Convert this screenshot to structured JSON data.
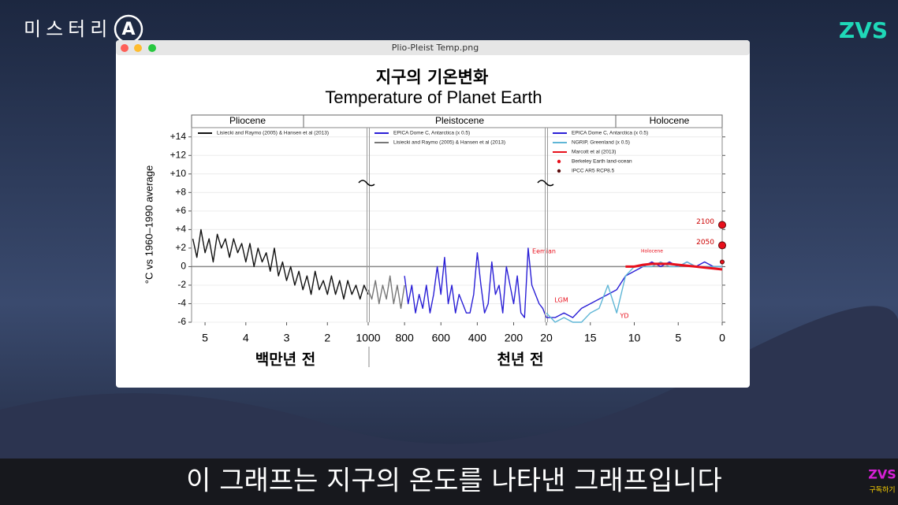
{
  "channel": {
    "name": "미스터리",
    "badge": "A"
  },
  "logo": "ZVS",
  "window": {
    "title": "Plio-Pleist Temp.png"
  },
  "chart_data": {
    "type": "line",
    "title_ko": "지구의 기온변화",
    "title": "Temperature of Planet Earth",
    "y_label": "°C vs 1960–1990 average",
    "eras": [
      "Pliocene",
      "Pleistocene",
      "Holocene"
    ],
    "ylim": [
      -6,
      15
    ],
    "yticks": [
      -6,
      -4,
      -2,
      0,
      {
        "value": 2,
        "label": "+2"
      },
      {
        "value": 4,
        "label": "+4"
      },
      {
        "value": 6,
        "label": "+6"
      },
      {
        "value": 8,
        "label": "+8"
      },
      {
        "value": 10,
        "label": "+10"
      },
      {
        "value": 12,
        "label": "+12"
      },
      {
        "value": 14,
        "label": "+14"
      }
    ],
    "grid": true,
    "x_units": [
      "백만년 전",
      "천년 전"
    ],
    "annotations": [
      "Eemian",
      "LGM",
      "YD",
      "Holocene"
    ],
    "panels": [
      {
        "xlim": [
          5.33,
          1
        ],
        "xticks": [
          5,
          4,
          3,
          2
        ],
        "series": [
          {
            "name": "Lisiecki and Raymo (2005) & Hansen et al (2013)",
            "color": "#111111",
            "x": [
              5.3,
              5.2,
              5.1,
              5.0,
              4.9,
              4.8,
              4.7,
              4.6,
              4.5,
              4.4,
              4.3,
              4.2,
              4.1,
              4.0,
              3.9,
              3.8,
              3.7,
              3.6,
              3.5,
              3.4,
              3.3,
              3.2,
              3.1,
              3.0,
              2.9,
              2.8,
              2.7,
              2.6,
              2.5,
              2.4,
              2.3,
              2.2,
              2.1,
              2.0,
              1.9,
              1.8,
              1.7,
              1.6,
              1.5,
              1.4,
              1.3,
              1.2,
              1.1,
              1.0
            ],
            "values": [
              3,
              1,
              4,
              1.5,
              3,
              0.5,
              3.5,
              2,
              3,
              1,
              3,
              1.5,
              2.5,
              0.5,
              2.5,
              0,
              2,
              0.5,
              1.5,
              -0.5,
              2,
              -1,
              0.5,
              -1.5,
              0,
              -2,
              -0.5,
              -2.5,
              -1,
              -3,
              -0.5,
              -2.5,
              -1.5,
              -3,
              -1,
              -3,
              -1.5,
              -3.5,
              -1.5,
              -3,
              -2,
              -3.5,
              -2,
              -3
            ]
          }
        ]
      },
      {
        "xlim": [
          1000,
          20
        ],
        "xticks": [
          1000,
          800,
          600,
          400,
          200
        ],
        "series": [
          {
            "name": "EPICA Dome C, Antarctica (x 0.5)",
            "color": "#2a1fd6",
            "x": [
              800,
              780,
              760,
              740,
              720,
              700,
              680,
              660,
              640,
              620,
              600,
              580,
              560,
              540,
              520,
              500,
              480,
              460,
              440,
              420,
              400,
              380,
              360,
              340,
              320,
              300,
              280,
              260,
              240,
              220,
              200,
              180,
              160,
              140,
              120,
              100,
              80,
              60,
              40,
              20
            ],
            "values": [
              -1,
              -4,
              -2,
              -5,
              -3,
              -4.5,
              -2,
              -5,
              -3,
              0,
              -3,
              1,
              -4,
              -2,
              -5,
              -3,
              -4,
              -5,
              -5,
              -3,
              1.5,
              -2,
              -5,
              -4,
              0.5,
              -3,
              -2,
              -5,
              0,
              -2,
              -4,
              -1,
              -5,
              -5.5,
              2,
              -2,
              -3,
              -4,
              -4.5,
              -5.5
            ]
          },
          {
            "name": "Lisiecki and Raymo (2005) & Hansen et al (2013)",
            "color": "#777777",
            "x": [
              1000,
              980,
              960,
              940,
              920,
              900,
              880,
              860,
              840,
              820,
              800
            ],
            "values": [
              -2.5,
              -3.5,
              -1.5,
              -4,
              -2,
              -3.5,
              -1,
              -4,
              -2,
              -4.5,
              -2
            ]
          }
        ]
      },
      {
        "xlim": [
          20,
          0
        ],
        "xticks": [
          20,
          15,
          10,
          5,
          0
        ],
        "series": [
          {
            "name": "EPICA Dome C, Antarctica (x 0.5)",
            "color": "#2a1fd6",
            "x": [
              20,
              19,
              18,
              17,
              16,
              15,
              14,
              13,
              12,
              11,
              10,
              9,
              8,
              7,
              6,
              5,
              4,
              3,
              2,
              1,
              0
            ],
            "values": [
              -5.5,
              -5.5,
              -5,
              -5.5,
              -4.5,
              -4,
              -3.5,
              -3,
              -2.5,
              -1,
              -0.5,
              0,
              0.5,
              0,
              0.5,
              0,
              0.5,
              0,
              0.5,
              0,
              0
            ]
          },
          {
            "name": "NGRIP, Greenland (x 0.5)",
            "color": "#5fb6d6",
            "x": [
              20,
              19,
              18,
              17,
              16,
              15,
              14,
              13,
              12,
              11,
              10,
              9,
              8,
              7,
              6,
              5,
              4,
              3,
              2,
              1,
              0
            ],
            "values": [
              -5,
              -6,
              -5.5,
              -6,
              -6,
              -5,
              -4.5,
              -2,
              -5,
              -1,
              0,
              0,
              0,
              0.5,
              0,
              0,
              0.5,
              0,
              0,
              0,
              0
            ]
          },
          {
            "name": "Marcott et al (2013)",
            "color": "#e8101c",
            "x": [
              11,
              10,
              9,
              8,
              7,
              6,
              5,
              4,
              3,
              2,
              1,
              0
            ],
            "values": [
              0,
              0,
              0.2,
              0.3,
              0.3,
              0.3,
              0.2,
              0.1,
              0,
              -0.1,
              -0.2,
              -0.3
            ]
          },
          {
            "name": "Berkeley Earth land-ocean",
            "color": "#e8101c",
            "marker": true,
            "x": [
              0
            ],
            "values": [
              0.5
            ]
          },
          {
            "name": "IPCC AR5 RCP8.5",
            "color": "#5a0a0a",
            "marker": true,
            "x": [
              0,
              0
            ],
            "values": [
              2.3,
              4.5
            ],
            "labels": [
              "2050",
              "2100"
            ]
          }
        ]
      }
    ]
  },
  "subtitle": "이 그래프는 지구의 온도를 나타낸 그래프입니다",
  "subscribe": {
    "logo": "ZVS",
    "label": "구독하기"
  }
}
